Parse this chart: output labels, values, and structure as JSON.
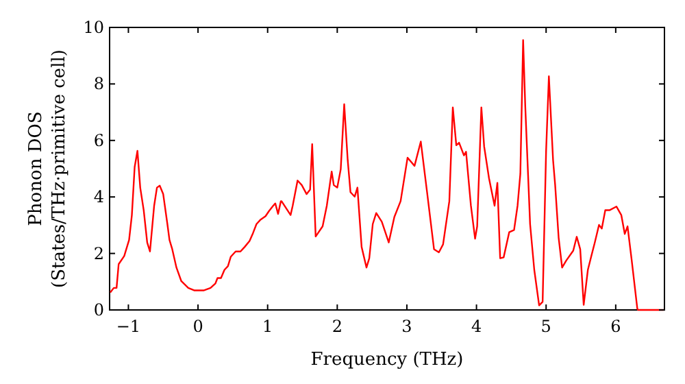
{
  "chart_data": {
    "type": "line",
    "xlabel": "Frequency (THz)",
    "ylabel": "Phonon DOS\n(States/THz·primitive cell)",
    "xlim": [
      -1.27,
      6.7
    ],
    "ylim": [
      0,
      10
    ],
    "xticks": [
      {
        "value": -1,
        "label": "−1"
      },
      0,
      1,
      2,
      3,
      4,
      5,
      6
    ],
    "yticks": [
      0,
      2,
      4,
      6,
      8,
      10
    ],
    "grid": false,
    "marker": "none",
    "line_style": "solid",
    "series": [
      {
        "color": "#ff0000",
        "x": [
          -1.26,
          -1.21,
          -1.17,
          -1.14,
          -1.06,
          -0.99,
          -0.95,
          -0.91,
          -0.87,
          -0.83,
          -0.78,
          -0.73,
          -0.69,
          -0.63,
          -0.59,
          -0.55,
          -0.5,
          -0.44,
          -0.41,
          -0.37,
          -0.31,
          -0.24,
          -0.14,
          -0.05,
          0.08,
          0.18,
          0.25,
          0.28,
          0.33,
          0.38,
          0.43,
          0.47,
          0.54,
          0.61,
          0.67,
          0.74,
          0.79,
          0.84,
          0.9,
          0.97,
          1.02,
          1.08,
          1.11,
          1.15,
          1.19,
          1.2,
          1.33,
          1.36,
          1.43,
          1.49,
          1.56,
          1.61,
          1.64,
          1.69,
          1.79,
          1.85,
          1.92,
          1.95,
          2.0,
          2.05,
          2.1,
          2.15,
          2.19,
          2.25,
          2.29,
          2.35,
          2.42,
          2.46,
          2.51,
          2.56,
          2.64,
          2.74,
          2.82,
          2.91,
          3.01,
          3.11,
          3.2,
          3.29,
          3.39,
          3.46,
          3.52,
          3.61,
          3.66,
          3.71,
          3.75,
          3.82,
          3.85,
          3.92,
          3.98,
          4.01,
          4.07,
          4.11,
          4.18,
          4.26,
          4.3,
          4.34,
          4.39,
          4.47,
          4.54,
          4.59,
          4.63,
          4.67,
          4.7,
          4.77,
          4.83,
          4.9,
          4.95,
          5.0,
          5.04,
          5.1,
          5.13,
          5.18,
          5.23,
          5.29,
          5.39,
          5.44,
          5.49,
          5.54,
          5.6,
          5.65,
          5.7,
          5.76,
          5.8,
          5.85,
          5.91,
          6.01,
          6.08,
          6.13,
          6.17,
          6.23,
          6.31,
          6.32,
          6.69
        ],
        "values": [
          0.62,
          0.78,
          0.78,
          1.62,
          1.91,
          2.48,
          3.36,
          5.06,
          5.63,
          4.33,
          3.53,
          2.39,
          2.07,
          3.69,
          4.33,
          4.4,
          4.1,
          3.04,
          2.48,
          2.15,
          1.5,
          1.02,
          0.78,
          0.69,
          0.69,
          0.78,
          0.94,
          1.13,
          1.13,
          1.42,
          1.55,
          1.88,
          2.07,
          2.07,
          2.23,
          2.44,
          2.72,
          3.04,
          3.2,
          3.32,
          3.5,
          3.69,
          3.77,
          3.4,
          3.85,
          3.85,
          3.36,
          3.69,
          4.58,
          4.42,
          4.1,
          4.26,
          5.87,
          2.6,
          2.96,
          3.69,
          4.9,
          4.42,
          4.33,
          4.98,
          7.28,
          5.31,
          4.17,
          4.01,
          4.33,
          2.23,
          1.5,
          1.83,
          3.04,
          3.43,
          3.12,
          2.39,
          3.29,
          3.85,
          5.39,
          5.1,
          5.96,
          4.17,
          2.15,
          2.04,
          2.32,
          3.85,
          7.17,
          5.83,
          5.92,
          5.47,
          5.6,
          3.69,
          2.52,
          2.96,
          7.17,
          5.79,
          4.66,
          3.69,
          4.5,
          1.83,
          1.86,
          2.75,
          2.83,
          3.69,
          4.82,
          9.55,
          7.25,
          3.04,
          1.42,
          0.16,
          0.29,
          5.63,
          8.27,
          5.31,
          4.42,
          2.56,
          1.5,
          1.75,
          2.1,
          2.59,
          2.15,
          0.18,
          1.42,
          1.91,
          2.39,
          3.01,
          2.88,
          3.53,
          3.53,
          3.66,
          3.36,
          2.69,
          2.96,
          1.75,
          0.05,
          0,
          0
        ]
      }
    ]
  }
}
